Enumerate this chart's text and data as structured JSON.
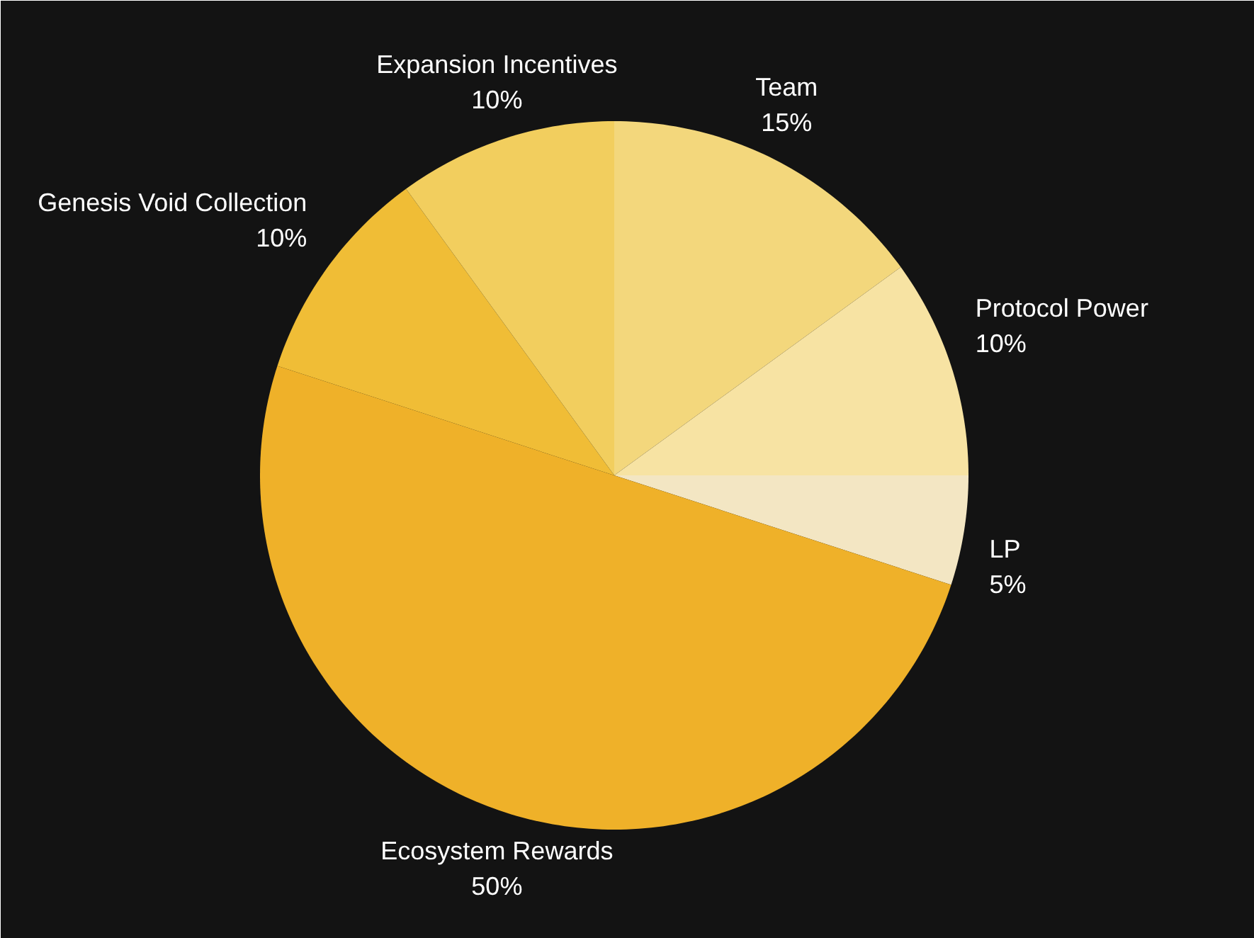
{
  "chart_data": {
    "type": "pie",
    "categories": [
      "Team",
      "Protocol Power",
      "LP",
      "Ecosystem Rewards",
      "Genesis Void Collection",
      "Expansion Incentives"
    ],
    "values": [
      15,
      10,
      5,
      50,
      10,
      10
    ],
    "colors": [
      "#f3d77c",
      "#f7e3a3",
      "#f3e6c3",
      "#efb129",
      "#f0bd36",
      "#f2ce5e"
    ],
    "value_labels": [
      "15%",
      "10%",
      "5%",
      "50%",
      "10%",
      "10%"
    ]
  }
}
